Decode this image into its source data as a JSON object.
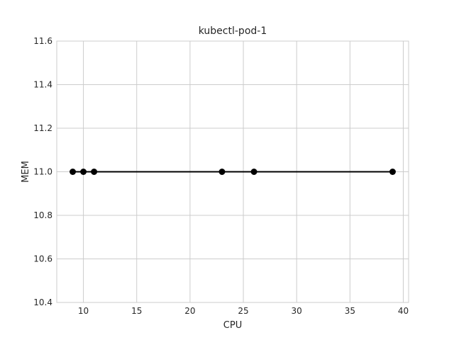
{
  "chart_data": {
    "type": "line",
    "title": "kubectl-pod-1",
    "xlabel": "CPU",
    "ylabel": "MEM",
    "xlim": [
      7.5,
      40.5
    ],
    "ylim": [
      10.4,
      11.6
    ],
    "xticks": [
      10,
      15,
      20,
      25,
      30,
      35,
      40
    ],
    "yticks": [
      10.4,
      10.6,
      10.8,
      11.0,
      11.2,
      11.4,
      11.6
    ],
    "ytick_labels": [
      "10.4",
      "10.6",
      "10.8",
      "11.0",
      "11.2",
      "11.4",
      "11.6"
    ],
    "grid": true,
    "series": [
      {
        "color": "#000000",
        "marker": "circle",
        "x": [
          9,
          10,
          11,
          23,
          26,
          39
        ],
        "y": [
          11.0,
          11.0,
          11.0,
          11.0,
          11.0,
          11.0
        ]
      }
    ]
  }
}
